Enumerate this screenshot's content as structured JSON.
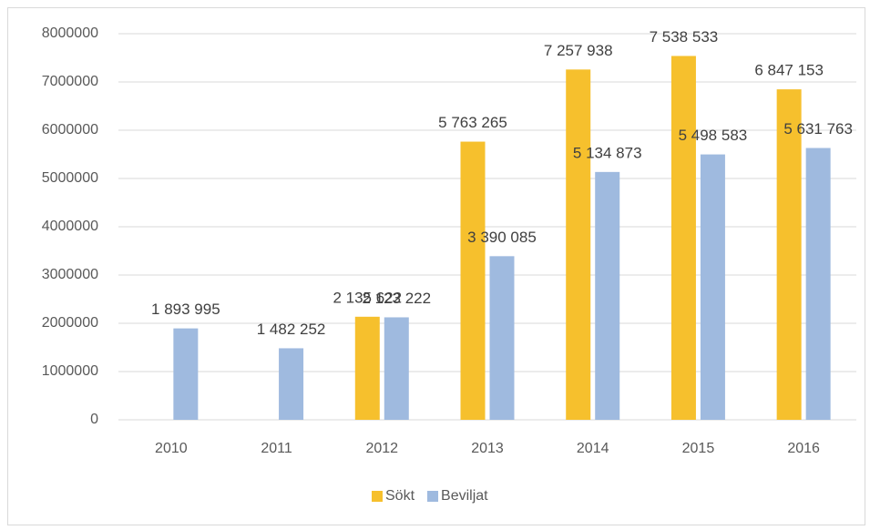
{
  "chart_data": {
    "type": "bar",
    "categories": [
      "2010",
      "2011",
      "2012",
      "2013",
      "2014",
      "2015",
      "2016"
    ],
    "series": [
      {
        "name": "Sökt",
        "color": "#f6c02d",
        "values": [
          null,
          null,
          2135622,
          5763265,
          7257938,
          7538533,
          6847153
        ],
        "value_labels": [
          null,
          null,
          "2 135 622",
          "5 763 265",
          "7 257 938",
          "7 538 533",
          "6 847 153"
        ]
      },
      {
        "name": "Beviljat",
        "color": "#9fbadf",
        "values": [
          1893995,
          1482252,
          2123222,
          3390085,
          5134873,
          5498583,
          5631763
        ],
        "value_labels": [
          "1 893 995",
          "1 482 252",
          "2 123 222",
          "3 390 085",
          "5 134 873",
          "5 498 583",
          "5 631 763"
        ]
      }
    ],
    "ylim": [
      0,
      8000000
    ],
    "yticks": [
      0,
      1000000,
      2000000,
      3000000,
      4000000,
      5000000,
      6000000,
      7000000,
      8000000
    ],
    "grid": true,
    "legend": "bottom"
  }
}
